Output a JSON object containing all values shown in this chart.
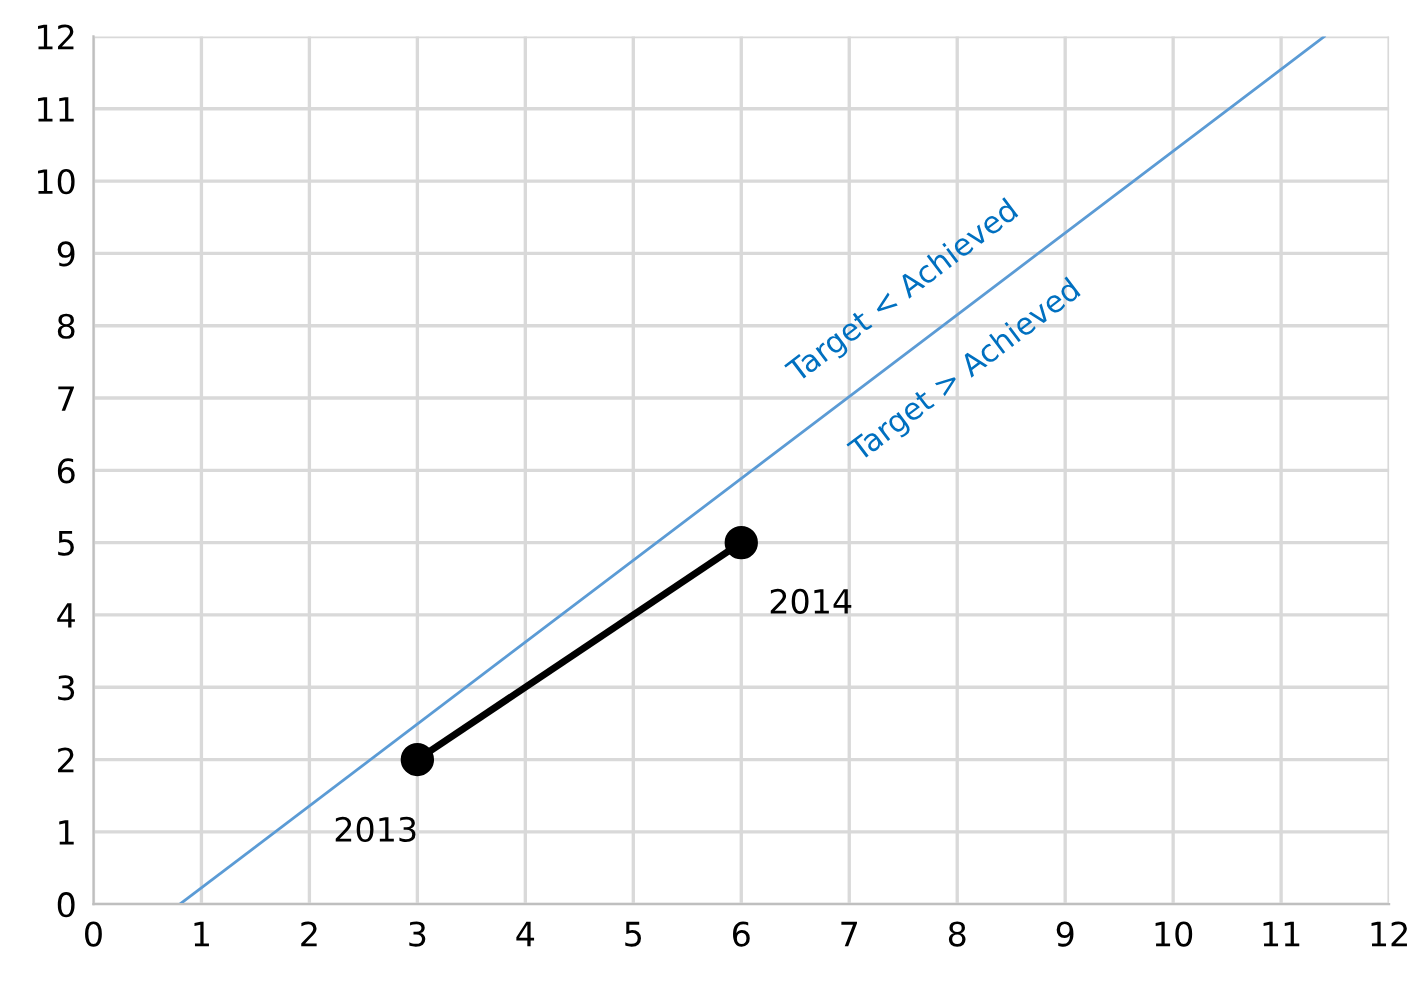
{
  "chart_data": {
    "type": "line",
    "xlim": [
      0,
      12
    ],
    "ylim": [
      0,
      12
    ],
    "xticks": [
      0,
      1,
      2,
      3,
      4,
      5,
      6,
      7,
      8,
      9,
      10,
      11,
      12
    ],
    "yticks": [
      0,
      1,
      2,
      3,
      4,
      5,
      6,
      7,
      8,
      9,
      10,
      11,
      12
    ],
    "grid": true,
    "legend": false,
    "series": [
      {
        "color": "#5b9bd5",
        "x": [
          0.8,
          11.4
        ],
        "values": [
          0,
          12
        ],
        "marker": "none"
      },
      {
        "color": "#000000",
        "x": [
          3,
          6
        ],
        "values": [
          2,
          5
        ],
        "marker": "circle"
      }
    ],
    "annotations": [
      "Target < Achieved",
      "Target > Achieved",
      {
        "text": "2013",
        "x": 3,
        "y": 2
      },
      {
        "text": "2014",
        "x": 6,
        "y": 5
      }
    ]
  }
}
